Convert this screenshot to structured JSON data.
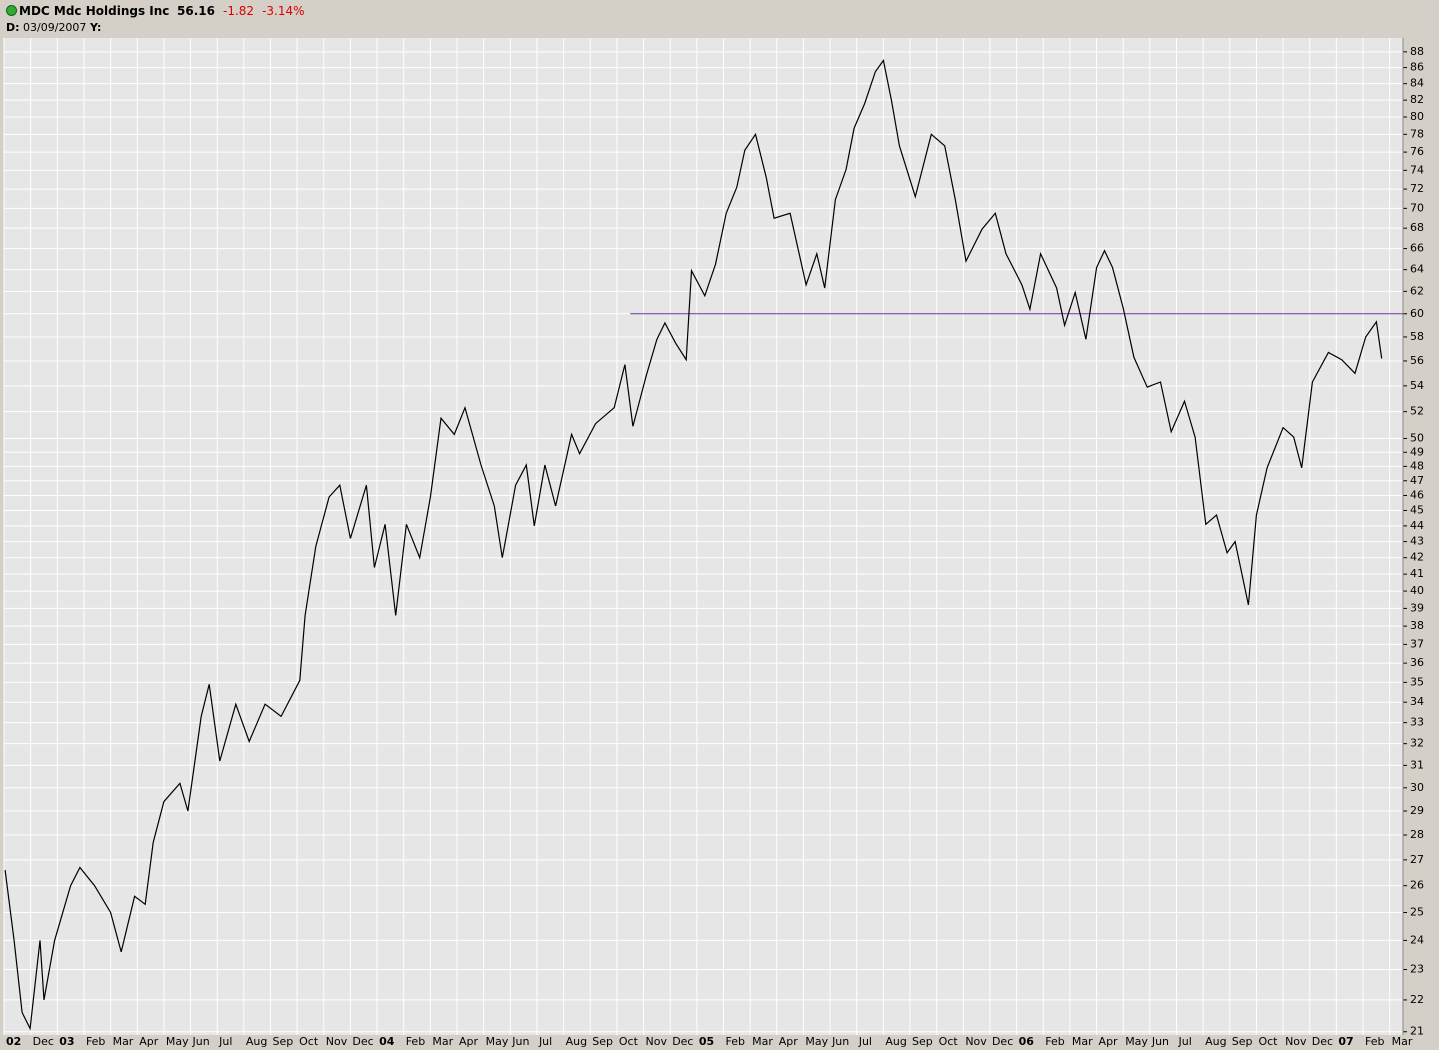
{
  "header": {
    "title": "MDC Mdc Holdings Inc",
    "price": "56.16",
    "change": "-1.82",
    "change_pct": "-3.14%",
    "date_label": "D:",
    "date": "03/09/2007",
    "y_label": "Y:"
  },
  "chart_data": {
    "type": "line",
    "log_scale": true,
    "grid": true,
    "xlim": [
      0,
      52.5
    ],
    "ylim": [
      20.9,
      89.8
    ],
    "xticks": [
      {
        "value": 0,
        "label": "02"
      },
      {
        "value": 1,
        "label": "Dec"
      },
      {
        "value": 2,
        "label": "03"
      },
      {
        "value": 3,
        "label": "Feb"
      },
      {
        "value": 4,
        "label": "Mar"
      },
      {
        "value": 5,
        "label": "Apr"
      },
      {
        "value": 6,
        "label": "May"
      },
      {
        "value": 7,
        "label": "Jun"
      },
      {
        "value": 8,
        "label": "Jul"
      },
      {
        "value": 9,
        "label": "Aug"
      },
      {
        "value": 10,
        "label": "Sep"
      },
      {
        "value": 11,
        "label": "Oct"
      },
      {
        "value": 12,
        "label": "Nov"
      },
      {
        "value": 13,
        "label": "Dec"
      },
      {
        "value": 14,
        "label": "04"
      },
      {
        "value": 15,
        "label": "Feb"
      },
      {
        "value": 16,
        "label": "Mar"
      },
      {
        "value": 17,
        "label": "Apr"
      },
      {
        "value": 18,
        "label": "May"
      },
      {
        "value": 19,
        "label": "Jun"
      },
      {
        "value": 20,
        "label": "Jul"
      },
      {
        "value": 21,
        "label": "Aug"
      },
      {
        "value": 22,
        "label": "Sep"
      },
      {
        "value": 23,
        "label": "Oct"
      },
      {
        "value": 24,
        "label": "Nov"
      },
      {
        "value": 25,
        "label": "Dec"
      },
      {
        "value": 26,
        "label": "05"
      },
      {
        "value": 27,
        "label": "Feb"
      },
      {
        "value": 28,
        "label": "Mar"
      },
      {
        "value": 29,
        "label": "Apr"
      },
      {
        "value": 30,
        "label": "May"
      },
      {
        "value": 31,
        "label": "Jun"
      },
      {
        "value": 32,
        "label": "Jul"
      },
      {
        "value": 33,
        "label": "Aug"
      },
      {
        "value": 34,
        "label": "Sep"
      },
      {
        "value": 35,
        "label": "Oct"
      },
      {
        "value": 36,
        "label": "Nov"
      },
      {
        "value": 37,
        "label": "Dec"
      },
      {
        "value": 38,
        "label": "06"
      },
      {
        "value": 39,
        "label": "Feb"
      },
      {
        "value": 40,
        "label": "Mar"
      },
      {
        "value": 41,
        "label": "Apr"
      },
      {
        "value": 42,
        "label": "May"
      },
      {
        "value": 43,
        "label": "Jun"
      },
      {
        "value": 44,
        "label": "Jul"
      },
      {
        "value": 45,
        "label": "Aug"
      },
      {
        "value": 46,
        "label": "Sep"
      },
      {
        "value": 47,
        "label": "Oct"
      },
      {
        "value": 48,
        "label": "Nov"
      },
      {
        "value": 49,
        "label": "Dec"
      },
      {
        "value": 50,
        "label": "07"
      },
      {
        "value": 51,
        "label": "Feb"
      },
      {
        "value": 52,
        "label": "Mar"
      }
    ],
    "yticks": [
      21,
      22,
      23,
      24,
      25,
      26,
      27,
      28,
      29,
      30,
      31,
      32,
      33,
      34,
      35,
      36,
      37,
      38,
      39,
      40,
      41,
      42,
      43,
      44,
      45,
      46,
      47,
      48,
      49,
      50,
      52,
      54,
      56,
      58,
      60,
      62,
      64,
      66,
      68,
      70,
      72,
      74,
      76,
      78,
      80,
      82,
      84,
      86,
      88
    ],
    "reference_line": {
      "y": 60,
      "x_start": 23.5,
      "color": "#7030a0"
    },
    "series": [
      {
        "color": "#000000",
        "x": [
          0.04,
          0.38,
          0.68,
          0.98,
          1.35,
          1.5,
          1.9,
          2.5,
          2.85,
          3.4,
          4.0,
          4.4,
          4.9,
          5.3,
          5.6,
          6.0,
          6.6,
          6.9,
          7.4,
          7.7,
          8.1,
          8.7,
          9.2,
          9.8,
          10.4,
          11.1,
          11.3,
          11.7,
          12.2,
          12.6,
          13.0,
          13.6,
          13.9,
          14.3,
          14.7,
          15.1,
          15.6,
          16.0,
          16.4,
          16.9,
          17.3,
          17.9,
          18.4,
          18.7,
          19.2,
          19.6,
          19.9,
          20.3,
          20.7,
          21.3,
          21.6,
          22.2,
          22.9,
          23.3,
          23.6,
          24.1,
          24.5,
          24.8,
          25.2,
          25.6,
          25.8,
          26.3,
          26.7,
          27.1,
          27.5,
          27.8,
          28.2,
          28.6,
          28.9,
          29.5,
          30.1,
          30.5,
          30.8,
          31.2,
          31.6,
          31.9,
          32.3,
          32.7,
          33.0,
          33.3,
          33.6,
          34.2,
          34.8,
          35.3,
          35.7,
          36.1,
          36.7,
          37.2,
          37.6,
          38.2,
          38.5,
          38.9,
          39.5,
          39.8,
          40.2,
          40.6,
          41.0,
          41.3,
          41.6,
          42.0,
          42.4,
          42.9,
          43.4,
          43.8,
          44.3,
          44.7,
          45.1,
          45.5,
          45.9,
          46.2,
          46.7,
          47.0,
          47.4,
          48.0,
          48.4,
          48.7,
          49.1,
          49.7,
          50.2,
          50.7,
          51.1,
          51.5,
          51.7
        ],
        "values": [
          26.6,
          24.0,
          21.6,
          21.1,
          24.0,
          22.0,
          24.0,
          26.0,
          26.7,
          26.0,
          25.0,
          23.6,
          25.6,
          25.3,
          27.7,
          29.4,
          30.2,
          29.0,
          33.3,
          34.9,
          31.2,
          33.9,
          32.1,
          33.9,
          33.3,
          35.1,
          38.6,
          42.7,
          45.9,
          46.7,
          43.2,
          46.7,
          41.4,
          44.1,
          38.6,
          44.1,
          42.0,
          45.9,
          51.5,
          50.3,
          52.3,
          48.1,
          45.3,
          42.0,
          46.7,
          48.1,
          44.0,
          48.1,
          45.3,
          50.3,
          48.9,
          51.1,
          52.3,
          55.7,
          50.9,
          54.8,
          57.8,
          59.2,
          57.5,
          56.1,
          63.9,
          61.6,
          64.5,
          69.5,
          72.2,
          76.2,
          78.0,
          73.3,
          69.0,
          69.5,
          62.6,
          65.5,
          62.3,
          70.9,
          74.1,
          78.7,
          81.6,
          85.5,
          86.9,
          82.0,
          76.7,
          71.2,
          78.0,
          76.7,
          70.9,
          64.8,
          67.9,
          69.5,
          65.5,
          62.6,
          60.4,
          65.5,
          62.3,
          59.0,
          61.9,
          57.8,
          64.2,
          65.8,
          64.2,
          60.5,
          56.3,
          53.9,
          54.3,
          50.5,
          52.8,
          50.1,
          44.1,
          44.7,
          42.3,
          43.0,
          39.2,
          44.7,
          47.9,
          50.8,
          50.1,
          47.9,
          54.3,
          56.7,
          56.1,
          55.0,
          58.0,
          59.3,
          56.2
        ]
      }
    ]
  }
}
